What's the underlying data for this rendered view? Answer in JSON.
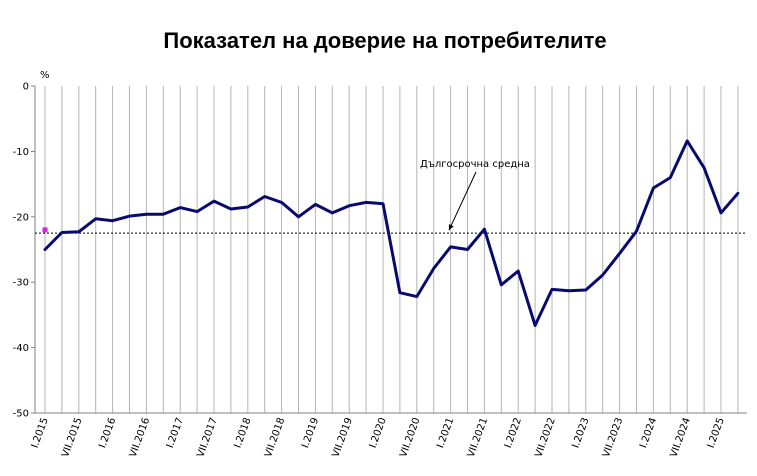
{
  "chart_data": {
    "type": "line",
    "title": "Показател на доверие на потребителите",
    "ylabel": "%",
    "xlabel": "",
    "ylim": [
      -50,
      0
    ],
    "yticks": [
      0,
      -10,
      -20,
      -30,
      -40,
      -50
    ],
    "grid": "vertical",
    "x_tick_labels": [
      "I.2015",
      "VII.2015",
      "I.2016",
      "VII.2016",
      "I.2017",
      "VII.2017",
      "I.2018",
      "VII.2018",
      "I.2019",
      "VII.2019",
      "I.2020",
      "VII.2020",
      "I.2021",
      "VII.2021",
      "I.2022",
      "VII.2022",
      "I.2023",
      "VII.2023",
      "I.2024",
      "VII.2024",
      "I.2025"
    ],
    "x": [
      "I.2015",
      "IV.2015",
      "VII.2015",
      "X.2015",
      "I.2016",
      "IV.2016",
      "VII.2016",
      "X.2016",
      "I.2017",
      "IV.2017",
      "VII.2017",
      "X.2017",
      "I.2018",
      "IV.2018",
      "VII.2018",
      "X.2018",
      "I.2019",
      "IV.2019",
      "VII.2019",
      "X.2019",
      "I.2020",
      "IV.2020",
      "VII.2020",
      "X.2020",
      "I.2021",
      "IV.2021",
      "VII.2021",
      "X.2021",
      "I.2022",
      "IV.2022",
      "VII.2022",
      "X.2022",
      "I.2023",
      "IV.2023",
      "VII.2023",
      "X.2023",
      "I.2024",
      "IV.2024",
      "VII.2024",
      "X.2024",
      "I.2025",
      "IV.2025"
    ],
    "series": [
      {
        "name": "",
        "color": "#0a0a6e",
        "values": [
          -25.0,
          -22.4,
          -22.3,
          -20.3,
          -20.6,
          -19.9,
          -19.6,
          -19.6,
          -18.6,
          -19.2,
          -17.6,
          -18.8,
          -18.5,
          -16.9,
          -17.8,
          -20.0,
          -18.1,
          -19.4,
          -18.3,
          -17.8,
          -18.0,
          -31.6,
          -32.2,
          -27.9,
          -24.6,
          -25.0,
          -21.9,
          -30.4,
          -28.3,
          -36.6,
          -31.1,
          -31.3,
          -31.2,
          -28.9,
          -25.6,
          -22.2,
          -15.6,
          -14.0,
          -8.4,
          -12.5,
          -19.4,
          -16.4
        ]
      }
    ],
    "reference_line": {
      "label": "Дългосрочна средна",
      "value": -22.5,
      "style": "dotted",
      "color": "#000000"
    },
    "marker": {
      "x": "I.2015",
      "value": -22.0,
      "color": "#e020e0"
    }
  }
}
